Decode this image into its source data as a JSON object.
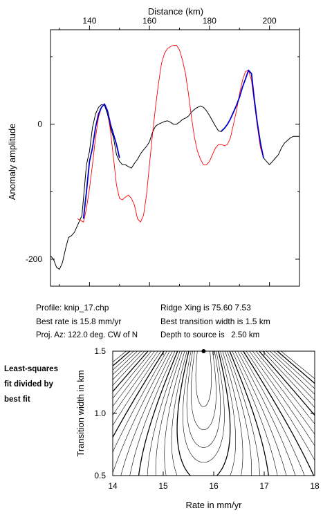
{
  "info": {
    "profile": "Profile: knip_17.chp",
    "best_rate": "Best rate is 15.8 mm/yr",
    "proj_az": "Proj. Az: 122.0 deg. CW of N",
    "ridge_xing": "Ridge Xing is 75.60 7.53",
    "best_width": "Best transition width is 1.5 km",
    "depth": "Depth to source is   2.50 km"
  },
  "side_label": [
    "Least-squares",
    "fit divided by",
    "best fit"
  ],
  "chart_data": [
    {
      "type": "line",
      "title": "",
      "xlabel": "Distance (km)",
      "ylabel": "Anomaly amplitude",
      "xlim": [
        127,
        210
      ],
      "ylim": [
        -240,
        140
      ],
      "xticks": [
        140,
        160,
        180,
        200
      ],
      "yticks": [
        0,
        -200
      ],
      "colors": {
        "observed": "#000000",
        "model": "#ff0000",
        "fit_window": "#0000cc"
      },
      "series": [
        {
          "name": "observed",
          "x": [
            127.0,
            128.0,
            129.0,
            130.0,
            131.0,
            132.0,
            133.0,
            134.0,
            135.0,
            136.0,
            137.0,
            137.5,
            138.0,
            139.0,
            140.0,
            141.0,
            142.0,
            143.0,
            144.0,
            145.0,
            146.0,
            147.0,
            148.0,
            149.0,
            150.0,
            151.0,
            152.0,
            153.0,
            154.0,
            155.0,
            156.0,
            157.0,
            158.0,
            159.0,
            160.0,
            161.0,
            162.0,
            163.0,
            164.0,
            165.0,
            166.0,
            167.0,
            168.0,
            169.0,
            170.0,
            171.0,
            172.0,
            173.0,
            174.0,
            175.0,
            176.0,
            177.0,
            178.0,
            179.0,
            180.0,
            181.0,
            182.0,
            183.0,
            184.0,
            185.0,
            186.0,
            187.0,
            188.0,
            189.0,
            190.0,
            191.0,
            192.0,
            193.0,
            194.0,
            195.0,
            196.0,
            197.0,
            198.0,
            199.0,
            200.0,
            201.0,
            202.0,
            203.0,
            204.0,
            205.0,
            206.0,
            207.0,
            208.0,
            209.0,
            210.0
          ],
          "y": [
            -195,
            -200,
            -212,
            -215,
            -205,
            -185,
            -168,
            -165,
            -160,
            -150,
            -140,
            -135,
            -110,
            -60,
            -40,
            -5,
            15,
            25,
            29,
            28,
            15,
            -5,
            -20,
            -45,
            -55,
            -60,
            -60,
            -63,
            -65,
            -58,
            -52,
            -44,
            -38,
            -33,
            -26,
            -12,
            -3,
            0,
            2,
            4,
            5,
            3,
            0,
            0,
            3,
            7,
            9,
            12,
            18,
            22,
            25,
            27,
            25,
            20,
            13,
            5,
            -3,
            -10,
            -11,
            -6,
            0,
            8,
            18,
            28,
            40,
            55,
            67,
            80,
            75,
            35,
            0,
            -28,
            -50,
            -55,
            -60,
            -55,
            -50,
            -45,
            -35,
            -28,
            -24,
            -20,
            -18,
            -18,
            -18
          ]
        },
        {
          "name": "model",
          "x": [
            136.0,
            138.0,
            139.0,
            140.0,
            141.0,
            142.0,
            143.0,
            144.0,
            145.0,
            146.0,
            147.0,
            148.0,
            149.0,
            150.0,
            151.0,
            152.0,
            153.0,
            154.0,
            155.0,
            156.0,
            157.0,
            158.0,
            159.0,
            160.0,
            161.0,
            162.0,
            163.0,
            164.0,
            165.0,
            166.0,
            167.0,
            168.0,
            169.0,
            170.0,
            171.0,
            172.0,
            173.0,
            174.0,
            175.0,
            176.0,
            177.0,
            178.0,
            179.0,
            180.0,
            181.0,
            182.0,
            183.0,
            184.0,
            185.0,
            186.0,
            187.0,
            188.0,
            189.0,
            190.0,
            191.0,
            192.0,
            193.0,
            194.0,
            195.0,
            196.0,
            197.0,
            198.0
          ],
          "y": [
            -140,
            -145,
            -125,
            -95,
            -60,
            -20,
            10,
            25,
            30,
            20,
            -10,
            -50,
            -90,
            -110,
            -112,
            -108,
            -105,
            -110,
            -120,
            -140,
            -145,
            -135,
            -105,
            -60,
            -15,
            25,
            60,
            90,
            105,
            112,
            115,
            117,
            117,
            110,
            95,
            75,
            45,
            10,
            -20,
            -40,
            -52,
            -60,
            -60,
            -55,
            -45,
            -35,
            -30,
            -30,
            -32,
            -30,
            -20,
            0,
            20,
            45,
            65,
            78,
            80,
            65,
            30,
            -5,
            -35,
            -50
          ]
        },
        {
          "name": "fit_window",
          "x": [
            138.0,
            139.0,
            140.0,
            141.0,
            142.0,
            143.0,
            144.0,
            145.0,
            146.0,
            147.0,
            148.0,
            149.0,
            150.0,
            184.0,
            185.0,
            186.0,
            187.0,
            188.0,
            189.0,
            190.0,
            191.0,
            192.0,
            193.0,
            194.0,
            195.0,
            196.0,
            197.0,
            198.0
          ],
          "y": [
            -140,
            -100,
            -55,
            -35,
            -5,
            15,
            25,
            30,
            20,
            0,
            -15,
            -30,
            -50,
            -10,
            -6,
            0,
            8,
            18,
            28,
            40,
            55,
            67,
            80,
            75,
            35,
            0,
            -28,
            -50
          ],
          "breaks": [
            13
          ]
        }
      ]
    },
    {
      "type": "contour",
      "title": "",
      "xlabel": "Rate in mm/yr",
      "ylabel": "Transition width in km",
      "xlim": [
        14,
        18
      ],
      "ylim": [
        0.5,
        1.5
      ],
      "xticks": [
        14,
        15,
        16,
        17,
        18
      ],
      "yticks": [
        0.5,
        1.0,
        1.5
      ],
      "best_fit": {
        "rate": 15.8,
        "width": 1.5
      },
      "levels": [
        1.2,
        1.4,
        1.6,
        1.8,
        2.1,
        2.4,
        2.8,
        3.3,
        3.8,
        4.4,
        5.1,
        5.9,
        6.8,
        7.8,
        8.9,
        10.1,
        11.5,
        13.0,
        14.7,
        16.5,
        18.5,
        20.7,
        23.0,
        25.5,
        28.2,
        31.0
      ]
    }
  ]
}
